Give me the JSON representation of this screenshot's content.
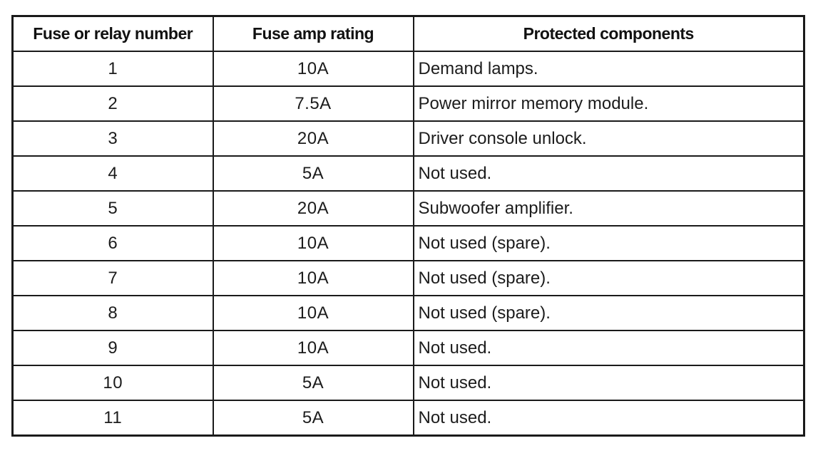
{
  "table": {
    "columns": [
      {
        "label": "Fuse or relay number"
      },
      {
        "label": "Fuse amp rating"
      },
      {
        "label": "Protected components"
      }
    ],
    "rows": [
      {
        "number": "1",
        "rating": "10A",
        "component": "Demand lamps."
      },
      {
        "number": "2",
        "rating": "7.5A",
        "component": "Power mirror memory module."
      },
      {
        "number": "3",
        "rating": "20A",
        "component": "Driver console unlock."
      },
      {
        "number": "4",
        "rating": "5A",
        "component": "Not used."
      },
      {
        "number": "5",
        "rating": "20A",
        "component": "Subwoofer amplifier."
      },
      {
        "number": "6",
        "rating": "10A",
        "component": "Not used (spare)."
      },
      {
        "number": "7",
        "rating": "10A",
        "component": "Not used (spare)."
      },
      {
        "number": "8",
        "rating": "10A",
        "component": "Not used (spare)."
      },
      {
        "number": "9",
        "rating": "10A",
        "component": "Not used."
      },
      {
        "number": "10",
        "rating": "5A",
        "component": "Not used."
      },
      {
        "number": "11",
        "rating": "5A",
        "component": "Not used."
      }
    ]
  }
}
